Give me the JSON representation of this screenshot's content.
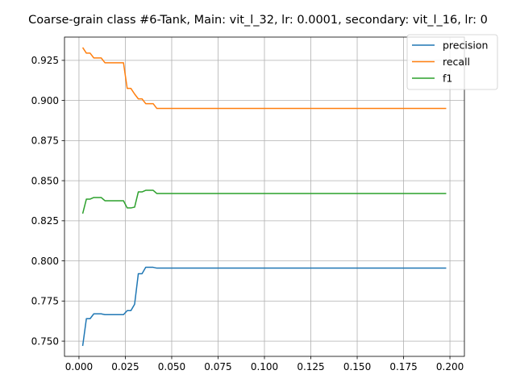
{
  "chart_data": {
    "type": "line",
    "title": "Coarse-grain class #6-Tank, Main: vit_l_32, lr: 0.0001, secondary: vit_l_16, lr: 0",
    "xlabel": "",
    "ylabel": "",
    "xlim": [
      -0.0078,
      0.2078
    ],
    "ylim": [
      0.7405,
      0.9395
    ],
    "grid": true,
    "legend_position": "top-right",
    "x_ticks": [
      "0.000",
      "0.025",
      "0.050",
      "0.075",
      "0.100",
      "0.125",
      "0.150",
      "0.175",
      "0.200"
    ],
    "y_ticks": [
      "0.750",
      "0.775",
      "0.800",
      "0.825",
      "0.850",
      "0.875",
      "0.900",
      "0.925"
    ],
    "x": [
      0.002,
      0.004,
      0.006,
      0.008,
      0.01,
      0.012,
      0.014,
      0.016,
      0.018,
      0.02,
      0.022,
      0.024,
      0.026,
      0.028,
      0.03,
      0.032,
      0.034,
      0.036,
      0.038,
      0.04,
      0.042,
      0.06,
      0.1,
      0.15,
      0.198
    ],
    "series": [
      {
        "name": "precision",
        "color": "#1f77b4",
        "values": [
          0.747,
          0.764,
          0.764,
          0.767,
          0.767,
          0.767,
          0.7665,
          0.7665,
          0.7665,
          0.7665,
          0.7665,
          0.7665,
          0.769,
          0.769,
          0.773,
          0.792,
          0.792,
          0.796,
          0.796,
          0.796,
          0.7955,
          0.7955,
          0.7955,
          0.7955,
          0.7955
        ]
      },
      {
        "name": "recall",
        "color": "#ff7f0e",
        "values": [
          0.933,
          0.9295,
          0.9295,
          0.9265,
          0.9265,
          0.9265,
          0.9235,
          0.9235,
          0.9235,
          0.9235,
          0.9235,
          0.9235,
          0.9075,
          0.9075,
          0.904,
          0.901,
          0.901,
          0.898,
          0.898,
          0.898,
          0.895,
          0.895,
          0.895,
          0.895,
          0.895
        ]
      },
      {
        "name": "f1",
        "color": "#2ca02c",
        "values": [
          0.8295,
          0.8385,
          0.8385,
          0.8395,
          0.8395,
          0.8395,
          0.8375,
          0.8375,
          0.8375,
          0.8375,
          0.8375,
          0.8375,
          0.833,
          0.833,
          0.8335,
          0.843,
          0.843,
          0.844,
          0.844,
          0.844,
          0.842,
          0.842,
          0.842,
          0.842,
          0.842
        ]
      }
    ]
  }
}
